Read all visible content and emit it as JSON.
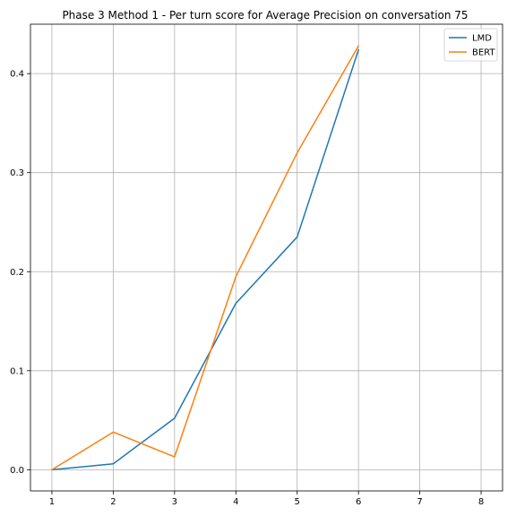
{
  "chart_data": {
    "type": "line",
    "title": "Phase 3 Method 1 - Per turn score for Average Precision on conversation 75",
    "xlabel": "",
    "ylabel": "",
    "xlim": [
      0.65,
      8.35
    ],
    "ylim": [
      -0.0214,
      0.4499
    ],
    "x_ticks": [
      1,
      2,
      3,
      4,
      5,
      6,
      7,
      8
    ],
    "y_ticks": [
      0.0,
      0.1,
      0.2,
      0.3,
      0.4
    ],
    "y_tick_labels": [
      "0.0",
      "0.1",
      "0.2",
      "0.3",
      "0.4"
    ],
    "grid": true,
    "legend_position": "top-right",
    "series": [
      {
        "name": "LMD",
        "color": "#1f77b4",
        "x": [
          1,
          2,
          3,
          4,
          5,
          6
        ],
        "values": [
          0.0,
          0.006,
          0.052,
          0.168,
          0.235,
          0.424
        ]
      },
      {
        "name": "BERT",
        "color": "#ff7f0e",
        "x": [
          1,
          2,
          3,
          4,
          5,
          6
        ],
        "values": [
          0.0,
          0.038,
          0.013,
          0.195,
          0.32,
          0.428
        ]
      }
    ]
  }
}
